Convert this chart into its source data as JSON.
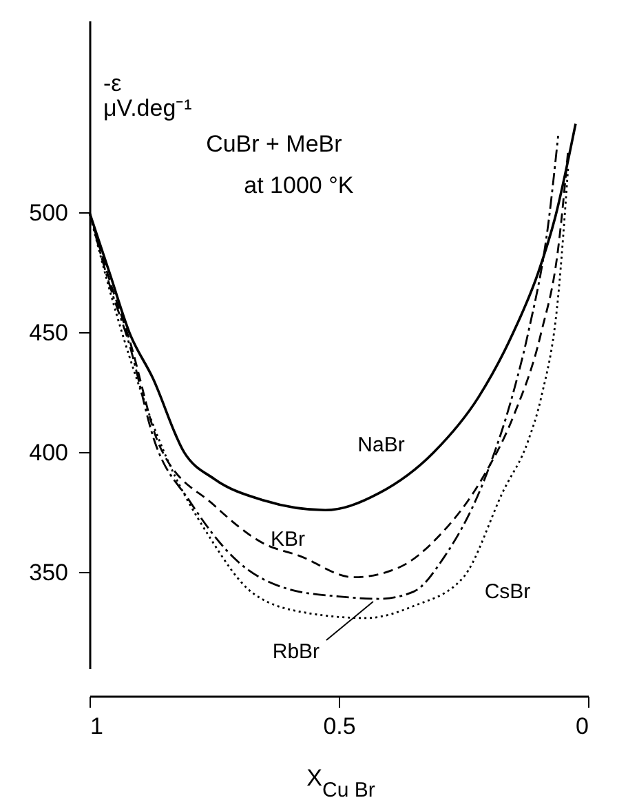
{
  "chart_data": {
    "type": "line",
    "xlabel": "X$_{Cu Br}$",
    "ylabel": "-ε μV.deg⁻¹",
    "annotations": [
      "CuBr + MeBr",
      "at 1000 °K"
    ],
    "xlim": [
      1,
      0
    ],
    "xticks": [
      {
        "value": 1,
        "label": "1"
      },
      0.5,
      {
        "value": 0,
        "label": "0"
      }
    ],
    "ylim": [
      310,
      580
    ],
    "yticks": [
      500,
      450,
      400,
      350
    ],
    "grid": false,
    "legend": false,
    "marker": "none",
    "series": [
      {
        "name": "NaBr",
        "color": "#000000",
        "line_style": "solid",
        "x": [
          1,
          0.96,
          0.92,
          0.873,
          0.81,
          0.75,
          0.65,
          0.527,
          0.42,
          0.31,
          0.22,
          0.15,
          0.1,
          0.066,
          0.025
        ],
        "values": [
          500,
          475,
          450,
          431,
          400,
          389,
          380,
          376,
          383,
          400,
          423,
          450,
          475,
          498,
          537
        ]
      },
      {
        "name": "KBr",
        "color": "#000000",
        "line_style": "dashed",
        "x": [
          1,
          0.96,
          0.92,
          0.86,
          0.75,
          0.65,
          0.58,
          0.47,
          0.38,
          0.3,
          0.21,
          0.15,
          0.094,
          0.06,
          0.04
        ],
        "values": [
          500,
          472,
          447,
          403,
          378,
          362,
          357,
          348,
          352,
          365,
          390,
          415,
          450,
          485,
          526
        ]
      },
      {
        "name": "RbBr",
        "color": "#000000",
        "line_style": "dashdot",
        "x": [
          1,
          0.96,
          0.92,
          0.87,
          0.8,
          0.71,
          0.6,
          0.5,
          0.42,
          0.35,
          0.29,
          0.2,
          0.15,
          0.12,
          0.08,
          0.06
        ],
        "values": [
          500,
          470,
          445,
          405,
          380,
          356,
          343,
          340,
          339,
          342,
          356,
          393,
          425,
          450,
          495,
          532
        ]
      },
      {
        "name": "CsBr",
        "color": "#000000",
        "line_style": "dotted",
        "x": [
          1,
          0.96,
          0.92,
          0.85,
          0.76,
          0.67,
          0.56,
          0.445,
          0.35,
          0.25,
          0.17,
          0.12,
          0.094,
          0.06,
          0.04
        ],
        "values": [
          500,
          468,
          440,
          400,
          365,
          341,
          333,
          331,
          336,
          348,
          384,
          405,
          423,
          465,
          519
        ]
      }
    ]
  }
}
